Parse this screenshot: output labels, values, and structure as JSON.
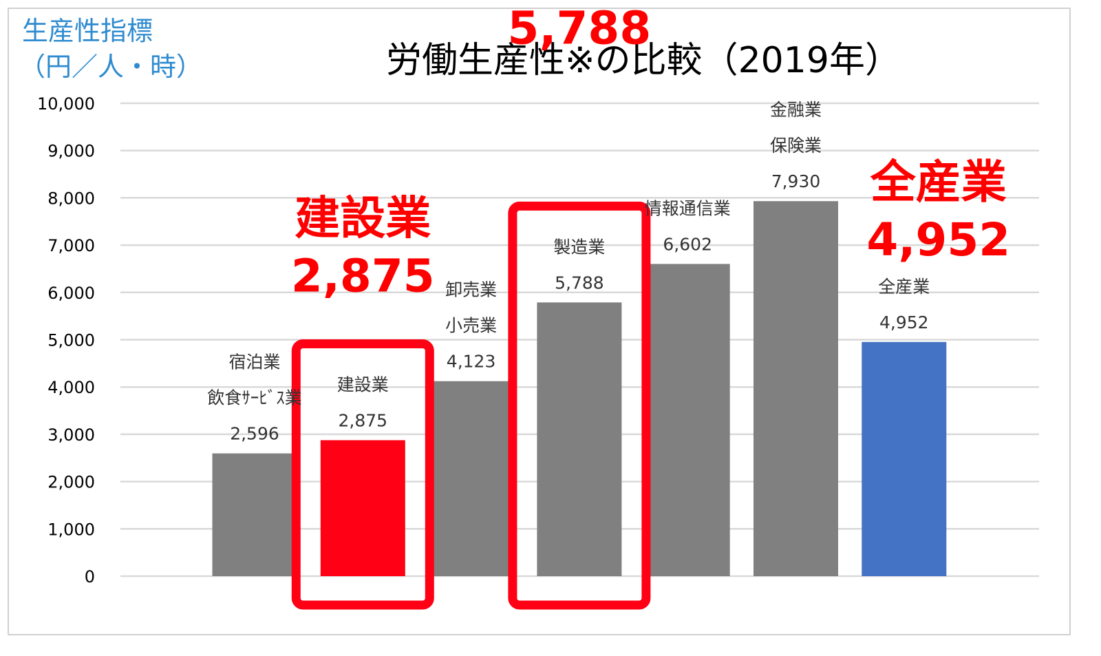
{
  "chart_data": {
    "type": "bar",
    "title": "労働生産性※の比較（2019年）",
    "ylabel": [
      "生産性指標",
      "（円／人・時）"
    ],
    "xlabel": "",
    "ylim": [
      0,
      10000
    ],
    "yticks": [
      "0",
      "1,000",
      "2,000",
      "3,000",
      "4,000",
      "5,000",
      "6,000",
      "7,000",
      "8,000",
      "9,000",
      "10,000"
    ],
    "grid": true,
    "categories": [
      [
        "宿泊業",
        "飲食ｻｰﾋﾞｽ業"
      ],
      [
        "建設業"
      ],
      [
        "卸売業",
        "小売業"
      ],
      [
        "製造業"
      ],
      [
        "情報通信業"
      ],
      [
        "金融業",
        "保険業"
      ],
      [
        "全産業"
      ]
    ],
    "values": [
      2596,
      2875,
      4123,
      5788,
      6602,
      7930,
      4952
    ],
    "value_labels": [
      "2,596",
      "2,875",
      "4,123",
      "5,788",
      "6,602",
      "7,930",
      "4,952"
    ],
    "bar_colors": [
      "#808080",
      "#ff0015",
      "#808080",
      "#808080",
      "#808080",
      "#808080",
      "#4472c4"
    ],
    "highlight_boxes": [
      1,
      3
    ],
    "highlight_color": "#ff0015",
    "callouts": [
      {
        "index": 1,
        "label": "建設業",
        "value": "2,875"
      },
      {
        "index": 3,
        "label": "製造業",
        "value": "5,788"
      },
      {
        "index": 6,
        "label": "全産業",
        "value": "4,952"
      }
    ]
  }
}
